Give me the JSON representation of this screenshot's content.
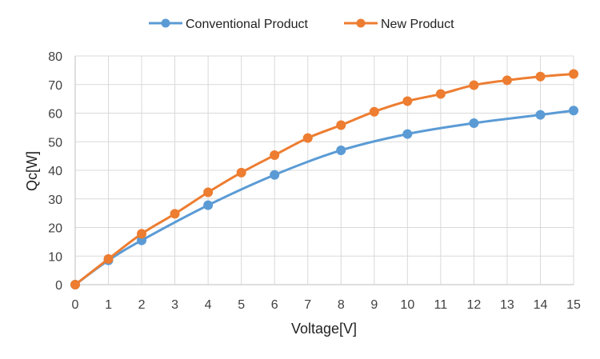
{
  "chart_data": {
    "type": "line",
    "xlabel": "Voltage[V]",
    "ylabel": "Qc[W]",
    "xlim": [
      0,
      15
    ],
    "ylim": [
      0,
      80
    ],
    "x_ticks": [
      0,
      1,
      2,
      3,
      4,
      5,
      6,
      7,
      8,
      9,
      10,
      11,
      12,
      13,
      14,
      15
    ],
    "y_ticks": [
      0,
      10,
      20,
      30,
      40,
      50,
      60,
      70,
      80
    ],
    "grid": true,
    "legend_position": "top-center",
    "series": [
      {
        "name": "Conventional Product",
        "color": "#5b9bd5",
        "x": [
          0,
          1,
          2,
          4,
          6,
          8,
          10,
          12,
          14,
          15
        ],
        "y": [
          0,
          8.5,
          15.5,
          27.8,
          38.4,
          47.0,
          52.7,
          56.5,
          59.4,
          60.9
        ]
      },
      {
        "name": "New Product",
        "color": "#ed7d31",
        "x": [
          0,
          1,
          2,
          3,
          4,
          5,
          6,
          7,
          8,
          9,
          10,
          11,
          12,
          13,
          14,
          15
        ],
        "y": [
          0,
          9.0,
          17.8,
          24.8,
          32.3,
          39.2,
          45.3,
          51.3,
          55.8,
          60.5,
          64.2,
          66.7,
          69.8,
          71.5,
          72.8,
          73.7
        ]
      }
    ]
  }
}
